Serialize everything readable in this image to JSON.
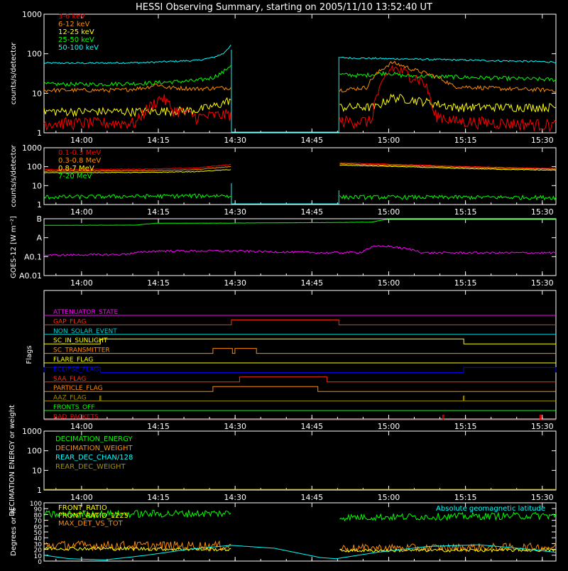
{
  "title": "HESSI Observing Summary, starting on 2005/11/10 13:52:40 UT",
  "time_axis": {
    "start_min": 0,
    "end_min": 100,
    "tick_labels": [
      "14:00",
      "14:15",
      "14:30",
      "14:45",
      "15:00",
      "15:15",
      "15:30"
    ],
    "tick_minutes": [
      7.333,
      22.333,
      37.333,
      52.333,
      67.333,
      82.333,
      97.333
    ],
    "gap_minutes": [
      36.6,
      57.6
    ]
  },
  "colors": {
    "red": "#ff0000",
    "orange": "#ff8c00",
    "yellow": "#ffff00",
    "green": "#00ff00",
    "cyan": "#00ffff",
    "magenta": "#ff00ff",
    "blue": "#0000ff",
    "olive": "#a09000",
    "axis": "#ffffff"
  },
  "chart_data": [
    {
      "type": "line",
      "name": "low-energy",
      "ylabel": "counts/s/detector",
      "scale": "log",
      "ylim": [
        1,
        1000
      ],
      "ytick_labels": [
        "1",
        "10",
        "100",
        "1000"
      ],
      "ytick_values": [
        1,
        10,
        100,
        1000
      ],
      "legend": [
        "3-6 keV",
        "6-12 keV",
        "12-25 keV",
        "25-50 keV",
        "50-100 keV"
      ],
      "legend_colors": [
        "#ff0000",
        "#ff8c00",
        "#ffff00",
        "#00ff00",
        "#00ffff"
      ],
      "series": [
        {
          "color": "#00ffff",
          "x": [
            0,
            10,
            20,
            30,
            33,
            35,
            36.5,
            57.7,
            60,
            70,
            80,
            90,
            100
          ],
          "y": [
            58,
            58,
            60,
            68,
            80,
            100,
            160,
            80,
            78,
            74,
            70,
            66,
            62
          ],
          "noise": 0.05
        },
        {
          "color": "#00ff00",
          "x": [
            0,
            10,
            20,
            30,
            33,
            35,
            36.5,
            57.7,
            62,
            67,
            70,
            80,
            90,
            100
          ],
          "y": [
            17,
            17,
            18,
            21,
            25,
            34,
            52,
            30,
            28,
            33,
            28,
            26,
            24,
            22
          ],
          "noise": 0.12
        },
        {
          "color": "#ff8c00",
          "x": [
            0,
            15,
            20,
            22,
            24,
            30,
            36.5,
            57.7,
            63,
            66,
            68,
            72,
            77,
            80,
            90,
            100
          ],
          "y": [
            12,
            12,
            14,
            17,
            14,
            13,
            14,
            12,
            14,
            40,
            60,
            40,
            25,
            15,
            13,
            12
          ],
          "noise": 0.12
        },
        {
          "color": "#ffff00",
          "x": [
            0,
            20,
            30,
            34,
            36.5,
            57.7,
            65,
            68,
            75,
            80,
            100
          ],
          "y": [
            3.5,
            3.5,
            3.8,
            5,
            7,
            4.5,
            4.5,
            8,
            6,
            4.5,
            4.5
          ],
          "noise": 0.25
        },
        {
          "color": "#ff0000",
          "x": [
            0,
            18,
            21,
            23,
            25,
            30,
            36.5,
            57.7,
            64,
            66,
            68,
            70,
            74,
            76,
            80,
            100
          ],
          "y": [
            1.8,
            1.8,
            5,
            8,
            4,
            2.5,
            3,
            2,
            2,
            15,
            45,
            35,
            20,
            3,
            2,
            1.6
          ],
          "noise": 0.35
        }
      ]
    },
    {
      "type": "line",
      "name": "high-energy",
      "ylabel": "counts/s/detector",
      "scale": "log",
      "ylim": [
        1,
        1000
      ],
      "ytick_labels": [
        "1",
        "10",
        "100",
        "1000"
      ],
      "ytick_values": [
        1,
        10,
        100,
        1000
      ],
      "legend": [
        "0.1-0.3 MeV",
        "0.3-0.8 MeV",
        "0.8-7 MeV",
        "7-20 MeV"
      ],
      "legend_colors": [
        "#ff0000",
        "#ff8c00",
        "#ffff00",
        "#00ff00"
      ],
      "series": [
        {
          "color": "#ff0000",
          "x": [
            0,
            20,
            30,
            36.5,
            57.7,
            70,
            80,
            90,
            100
          ],
          "y": [
            70,
            75,
            85,
            130,
            160,
            130,
            105,
            90,
            80
          ],
          "noise": 0.04
        },
        {
          "color": "#ff8c00",
          "x": [
            0,
            20,
            30,
            36.5,
            57.7,
            70,
            80,
            90,
            100
          ],
          "y": [
            58,
            62,
            70,
            100,
            140,
            115,
            95,
            82,
            74
          ],
          "noise": 0.04
        },
        {
          "color": "#ffff00",
          "x": [
            0,
            20,
            30,
            36.5,
            57.7,
            70,
            80,
            90,
            100
          ],
          "y": [
            48,
            50,
            55,
            70,
            120,
            100,
            82,
            72,
            65
          ],
          "noise": 0.04
        },
        {
          "color": "#00ff00",
          "x": [
            0,
            36.5,
            57.7,
            100
          ],
          "y": [
            2.5,
            3,
            2.5,
            2.4
          ],
          "noise": 0.25,
          "continuous": false
        }
      ]
    },
    {
      "type": "line",
      "name": "goes",
      "ylabel": "GOES-12 [W m⁻²]",
      "scale": "log",
      "ylim": [
        0.01,
        10
      ],
      "ytick_labels": [
        "A0.01",
        "A0.1",
        "A",
        "B"
      ],
      "ytick_values": [
        0.01,
        0.1,
        1,
        10
      ],
      "series": [
        {
          "color": "#00ff00",
          "x": [
            0,
            18,
            20,
            22,
            36.5,
            45,
            55,
            64,
            67,
            72,
            80,
            100
          ],
          "y": [
            4.5,
            4.6,
            5.3,
            5.8,
            5.9,
            6.1,
            6.3,
            6.6,
            9.3,
            9.6,
            9.5,
            9.5
          ],
          "noise": 0.01,
          "continuous": true
        },
        {
          "color": "#ff00ff",
          "x": [
            0,
            15,
            18,
            22,
            36.5,
            45,
            55,
            62,
            63,
            64.5,
            67,
            70,
            73,
            74,
            100
          ],
          "y": [
            0.12,
            0.13,
            0.16,
            0.2,
            0.2,
            0.18,
            0.16,
            0.17,
            0.25,
            0.34,
            0.36,
            0.28,
            0.2,
            0.16,
            0.16
          ],
          "noise": 0.12,
          "continuous": true
        }
      ]
    },
    {
      "type": "line",
      "name": "flags",
      "ylabel": "Flags",
      "flag_labels": [
        "ATTENUATOR_STATE",
        "GAP_FLAG",
        "NON_SOLAR_EVENT",
        "SC_IN_SUNLIGHT",
        "SC_TRANSMITTER",
        "FLARE_FLAG",
        "ECLIPSE_FLAG",
        "SAA_FLAG",
        "PARTICLE_FLAG",
        "AAZ_FLAG",
        "FRONTS_OFF",
        "BAD_PACKETS"
      ],
      "flag_colors": [
        "#ff00ff",
        "#ff3000",
        "#00cccc",
        "#ffff00",
        "#ff8c00",
        "#ffff00",
        "#0000ff",
        "#ff3000",
        "#ff8c00",
        "#a09000",
        "#00ff00",
        "#ff0000"
      ],
      "flag_highs": [
        [],
        [
          [
            36.6,
            57.6
          ]
        ],
        [],
        [
          [
            11,
            82
          ]
        ],
        [
          [
            33,
            36.8
          ],
          [
            37.3,
            41.5
          ]
        ],
        [],
        [
          [
            0,
            11
          ],
          [
            82,
            100
          ]
        ],
        [
          [
            38.2,
            55.3
          ]
        ],
        [
          [
            33,
            53.5
          ]
        ],
        [
          [
            10.9,
            11.1
          ],
          [
            81.9,
            82.1
          ]
        ],
        [],
        [
          [
            77.9,
            78.1
          ],
          [
            96.9,
            97.1
          ]
        ]
      ]
    },
    {
      "type": "line",
      "name": "decimation",
      "ylabel": "DECIMATION ENERGY or weight",
      "scale": "log",
      "ylim": [
        1,
        1000
      ],
      "ytick_labels": [
        "1",
        "10",
        "100",
        "1000"
      ],
      "ytick_values": [
        1,
        10,
        100,
        1000
      ],
      "legend": [
        "DECIMATION_ENERGY",
        "DECIMATION_WEIGHT",
        "REAR_DEC_CHAN/128",
        "REAR_DEC_WEIGHT"
      ],
      "legend_colors": [
        "#00ff00",
        "#ff8c00",
        "#00ffff",
        "#a09000"
      ],
      "series": [
        {
          "color": "#a09000",
          "x": [
            0,
            100
          ],
          "y": [
            1,
            1
          ],
          "noise": 0,
          "continuous": true
        }
      ]
    },
    {
      "type": "line",
      "name": "ratios",
      "ylabel": "Degrees or %",
      "scale": "linear",
      "ylim": [
        0,
        100
      ],
      "ytick_labels": [
        "0",
        "10",
        "20",
        "30",
        "40",
        "50",
        "60",
        "70",
        "80",
        "90",
        "100"
      ],
      "ytick_values": [
        0,
        10,
        20,
        30,
        40,
        50,
        60,
        70,
        80,
        90,
        100
      ],
      "legend": [
        "FRONT_RATIO",
        "FRONT_RATIO_1225",
        "MAX_DET_VS_TOT"
      ],
      "legend_colors": [
        "#ffff00",
        "#ffff00",
        "#ff8c00"
      ],
      "right_legend": "Absolute geomagnetic latitude",
      "right_legend_color": "#00ffff",
      "series": [
        {
          "color": "#00ff00",
          "x": [
            0,
            36.5,
            57.7,
            100
          ],
          "y": [
            80,
            82,
            75,
            78
          ],
          "noise": 0.08
        },
        {
          "color": "#ff8c00",
          "x": [
            0,
            36.5,
            57.7,
            100
          ],
          "y": [
            27,
            26,
            22,
            24
          ],
          "noise": 0.3
        },
        {
          "color": "#ffff00",
          "x": [
            0,
            36.5,
            57.7,
            100
          ],
          "y": [
            22,
            20,
            18,
            19
          ],
          "noise": 0.15
        },
        {
          "color": "#00ffff",
          "x": [
            0,
            5,
            12,
            20,
            28,
            36.5,
            45,
            54,
            57,
            65,
            75,
            85,
            95,
            100
          ],
          "y": [
            10,
            4,
            2,
            10,
            20,
            27,
            22,
            6,
            4,
            15,
            25,
            28,
            20,
            15
          ],
          "noise": 0,
          "continuous": true,
          "smooth": true
        }
      ]
    }
  ]
}
